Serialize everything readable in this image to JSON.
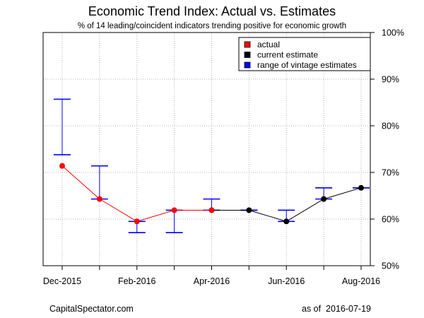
{
  "chart_data": {
    "type": "line",
    "title": "Economic Trend Index: Actual vs. Estimates",
    "subtitle": "% of 14 leading/coincident indicators trending positive for economic growth",
    "x": [
      "2015-12",
      "2016-01",
      "2016-02",
      "2016-03",
      "2016-04",
      "2016-05",
      "2016-06",
      "2016-07",
      "2016-08"
    ],
    "x_tick_labels": [
      {
        "x": "2015-12",
        "label": "Dec-2015"
      },
      {
        "x": "2016-02",
        "label": "Feb-2016"
      },
      {
        "x": "2016-04",
        "label": "Apr-2016"
      },
      {
        "x": "2016-06",
        "label": "Jun-2016"
      },
      {
        "x": "2016-08",
        "label": "Aug-2016"
      }
    ],
    "ylim": [
      50,
      100
    ],
    "y_ticks": [
      50,
      60,
      70,
      80,
      90,
      100
    ],
    "y_tick_labels": [
      "50%",
      "60%",
      "70%",
      "80%",
      "90%",
      "100%"
    ],
    "y_axis_side": "right",
    "grid": true,
    "legend_position": "top-right",
    "legend": [
      {
        "label": "actual",
        "color": "#ff0000"
      },
      {
        "label": "current estimate",
        "color": "#000000"
      },
      {
        "label": "range of vintage estimates",
        "color": "#0000ff"
      }
    ],
    "series": [
      {
        "name": "actual",
        "color": "#ff0000",
        "points": [
          {
            "x": "2015-12",
            "y": 71.4
          },
          {
            "x": "2016-01",
            "y": 64.3
          },
          {
            "x": "2016-02",
            "y": 59.5
          },
          {
            "x": "2016-03",
            "y": 61.9
          },
          {
            "x": "2016-04",
            "y": 61.9
          }
        ]
      },
      {
        "name": "current estimate",
        "color": "#000000",
        "points": [
          {
            "x": "2016-04",
            "y": 61.9
          },
          {
            "x": "2016-05",
            "y": 61.9
          },
          {
            "x": "2016-06",
            "y": 59.5
          },
          {
            "x": "2016-07",
            "y": 64.3
          },
          {
            "x": "2016-08",
            "y": 66.7
          }
        ]
      },
      {
        "name": "range of vintage estimates",
        "color": "#0000ff",
        "ranges": [
          {
            "x": "2015-12",
            "low": 73.8,
            "high": 85.7
          },
          {
            "x": "2016-01",
            "low": 64.3,
            "high": 71.4
          },
          {
            "x": "2016-02",
            "low": 57.1,
            "high": 59.5
          },
          {
            "x": "2016-03",
            "low": 57.1,
            "high": 61.9
          },
          {
            "x": "2016-04",
            "low": 61.9,
            "high": 64.3
          },
          {
            "x": "2016-05",
            "low": 61.9,
            "high": 61.9
          },
          {
            "x": "2016-06",
            "low": 59.5,
            "high": 61.9
          },
          {
            "x": "2016-07",
            "low": 64.3,
            "high": 66.7
          },
          {
            "x": "2016-08",
            "low": 66.7,
            "high": 66.7
          }
        ]
      }
    ]
  },
  "footer": {
    "source": "CapitalSpectator.com",
    "asof": "as of  2016-07-19"
  }
}
